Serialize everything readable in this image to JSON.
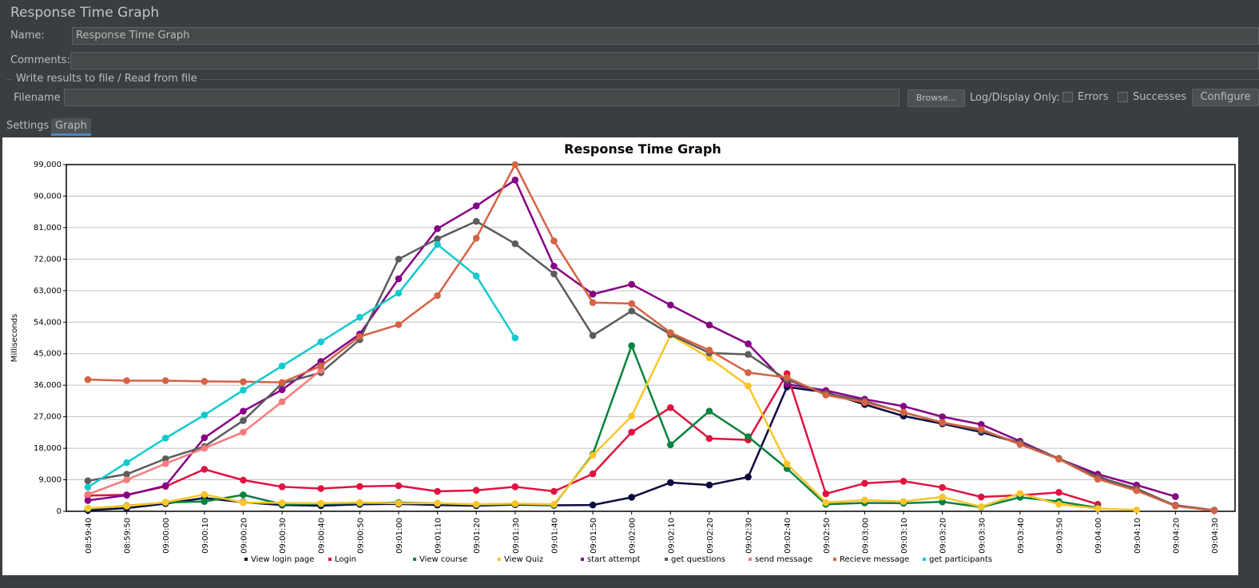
{
  "window": {
    "title": "Response Time Graph"
  },
  "form": {
    "name_label": "Name:",
    "name_value": "Response Time Graph",
    "comments_label": "Comments:",
    "comments_value": "",
    "file_section_label": "Write results to file / Read from file",
    "filename_label": "Filename",
    "filename_value": "",
    "browse_label": "Browse...",
    "log_display_label": "Log/Display Only:",
    "errors_label": "Errors",
    "successes_label": "Successes",
    "configure_label": "Configure"
  },
  "tabs": [
    {
      "label": "Settings",
      "active": false
    },
    {
      "label": "Graph",
      "active": true
    }
  ],
  "chart_data": {
    "type": "line",
    "title": "Response Time Graph",
    "xlabel": "",
    "ylabel": "Milliseconds",
    "ylim": [
      0,
      99000
    ],
    "yticks": [
      "0",
      "9,000",
      "18,000",
      "27,000",
      "36,000",
      "45,000",
      "54,000",
      "63,000",
      "72,000",
      "81,000",
      "90,000",
      "99,000"
    ],
    "grid": true,
    "legend_position": "bottom",
    "x": [
      "08:59:40",
      "08:59:50",
      "09:00:00",
      "09:00:10",
      "09:00:20",
      "09:00:30",
      "09:00:40",
      "09:00:50",
      "09:01:00",
      "09:01:10",
      "09:01:20",
      "09:01:30",
      "09:01:40",
      "09:01:50",
      "09:02:00",
      "09:02:10",
      "09:02:20",
      "09:02:30",
      "09:02:40",
      "09:02:50",
      "09:03:00",
      "09:03:10",
      "09:03:20",
      "09:03:30",
      "09:03:40",
      "09:03:50",
      "09:04:00",
      "09:04:10",
      "09:04:20",
      "09:04:30"
    ],
    "series": [
      {
        "name": "View login page",
        "color": "#0b0a3e",
        "values": [
          300,
          900,
          2200,
          3800,
          2600,
          1800,
          1600,
          2000,
          2100,
          1800,
          1600,
          1900,
          1700,
          1800,
          4000,
          8200,
          7500,
          9800,
          35500,
          34000,
          30500,
          27200,
          25000,
          22600,
          19400,
          15000,
          10000,
          6000,
          1700,
          300
        ]
      },
      {
        "name": "Login",
        "color": "#e0123f",
        "values": [
          4500,
          4700,
          7100,
          12000,
          8900,
          7000,
          6500,
          7100,
          7300,
          5700,
          6000,
          7000,
          5700,
          10700,
          22600,
          29600,
          20800,
          20400,
          39300,
          5000,
          8000,
          8600,
          6800,
          4100,
          4600,
          5400,
          2000,
          null,
          null,
          null
        ]
      },
      {
        "name": "View course",
        "color": "#08833e",
        "values": [
          700,
          1600,
          2500,
          2800,
          4700,
          2000,
          2100,
          2300,
          2500,
          2300,
          1900,
          2100,
          1800,
          16300,
          47300,
          19000,
          28600,
          21300,
          12200,
          2000,
          2400,
          2300,
          2700,
          1200,
          4000,
          2800,
          1000,
          null,
          null,
          null
        ]
      },
      {
        "name": "View Quiz",
        "color": "#fbc52a",
        "values": [
          900,
          1500,
          2600,
          4800,
          2500,
          2400,
          2300,
          2500,
          2300,
          2300,
          2000,
          2200,
          2000,
          16000,
          27200,
          50300,
          43800,
          35800,
          13500,
          2500,
          3200,
          2800,
          4100,
          1300,
          5100,
          2000,
          800,
          400,
          null,
          null
        ]
      },
      {
        "name": "start attempt",
        "color": "#860186",
        "values": [
          3100,
          4600,
          7300,
          21000,
          28600,
          34700,
          42800,
          50600,
          66400,
          80700,
          87200,
          94600,
          70000,
          62000,
          64800,
          58900,
          53200,
          47800,
          36300,
          34500,
          32000,
          30000,
          27000,
          24800,
          20000,
          15000,
          10600,
          7500,
          4200,
          null
        ]
      },
      {
        "name": "get questions",
        "color": "#5c5c5c",
        "values": [
          8700,
          10600,
          15000,
          18500,
          25900,
          36500,
          39600,
          49000,
          72000,
          77800,
          82800,
          76400,
          67800,
          50200,
          57200,
          50500,
          45200,
          44800,
          37500,
          33700,
          31500,
          28200,
          25400,
          23000,
          19500,
          15100,
          9800,
          6500,
          1600,
          300
        ]
      },
      {
        "name": "send message",
        "color": "#f77b7c",
        "values": [
          4800,
          9000,
          13600,
          18000,
          22600,
          31300,
          40300,
          null,
          null,
          null,
          null,
          null,
          null,
          null,
          null,
          null,
          null,
          null,
          null,
          null,
          null,
          null,
          null,
          null,
          null,
          null,
          null,
          null,
          null,
          null
        ]
      },
      {
        "name": "Recieve message",
        "color": "#d46344",
        "values": [
          37600,
          37300,
          37300,
          37100,
          37000,
          36800,
          41500,
          49900,
          53300,
          61600,
          78000,
          99000,
          77200,
          59600,
          59300,
          51000,
          46000,
          39600,
          38200,
          33200,
          31100,
          28300,
          25300,
          23400,
          19100,
          14900,
          9200,
          5900,
          1500,
          200
        ]
      },
      {
        "name": "get participants",
        "color": "#12cacd",
        "values": [
          6900,
          13900,
          20900,
          27500,
          34600,
          41500,
          48400,
          55400,
          62300,
          76200,
          67200,
          49500,
          null,
          null,
          null,
          null,
          null,
          null,
          null,
          null,
          null,
          null,
          null,
          null,
          null,
          null,
          null,
          null,
          null,
          null
        ]
      }
    ]
  }
}
